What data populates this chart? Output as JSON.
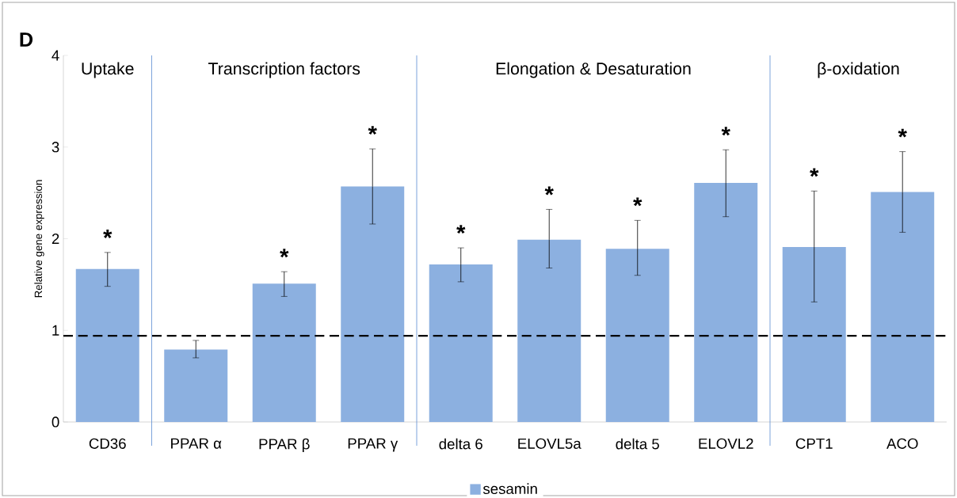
{
  "chart_data": {
    "type": "bar",
    "ylabel": "Relative gene expression",
    "categories": [
      "CD36",
      "PPAR α",
      "PPAR β",
      "PPAR γ",
      "delta 6",
      "ELOVL5a",
      "delta 5",
      "ELOVL2",
      "CPT1",
      "ACO"
    ],
    "series": [
      {
        "name": "sesamin",
        "color": "#8cb0e0",
        "values": [
          1.67,
          0.79,
          1.51,
          2.57,
          1.72,
          1.99,
          1.89,
          2.61,
          1.91,
          2.51
        ],
        "errors": [
          [
            1.48,
            1.85
          ],
          [
            0.7,
            0.89
          ],
          [
            1.37,
            1.64
          ],
          [
            2.16,
            2.98
          ],
          [
            1.53,
            1.9
          ],
          [
            1.68,
            2.32
          ],
          [
            1.6,
            2.2
          ],
          [
            2.24,
            2.97
          ],
          [
            1.31,
            2.52
          ],
          [
            2.07,
            2.95
          ]
        ],
        "value_labels": [
          "*",
          null,
          "*",
          "*",
          "*",
          "*",
          "*",
          "*",
          "*",
          "*"
        ]
      }
    ],
    "ylim": [
      0,
      4
    ],
    "yticks": [
      0,
      1,
      2,
      3,
      4
    ],
    "legend": "bottom",
    "ref_lines": [
      {
        "axis": "y",
        "value": 0.94,
        "line_style": "dashed",
        "color": "#000000"
      }
    ],
    "annotations": [
      "D",
      "Uptake",
      "Transcription factors",
      "Elongation & Desaturation",
      "β-oxidation"
    ]
  }
}
